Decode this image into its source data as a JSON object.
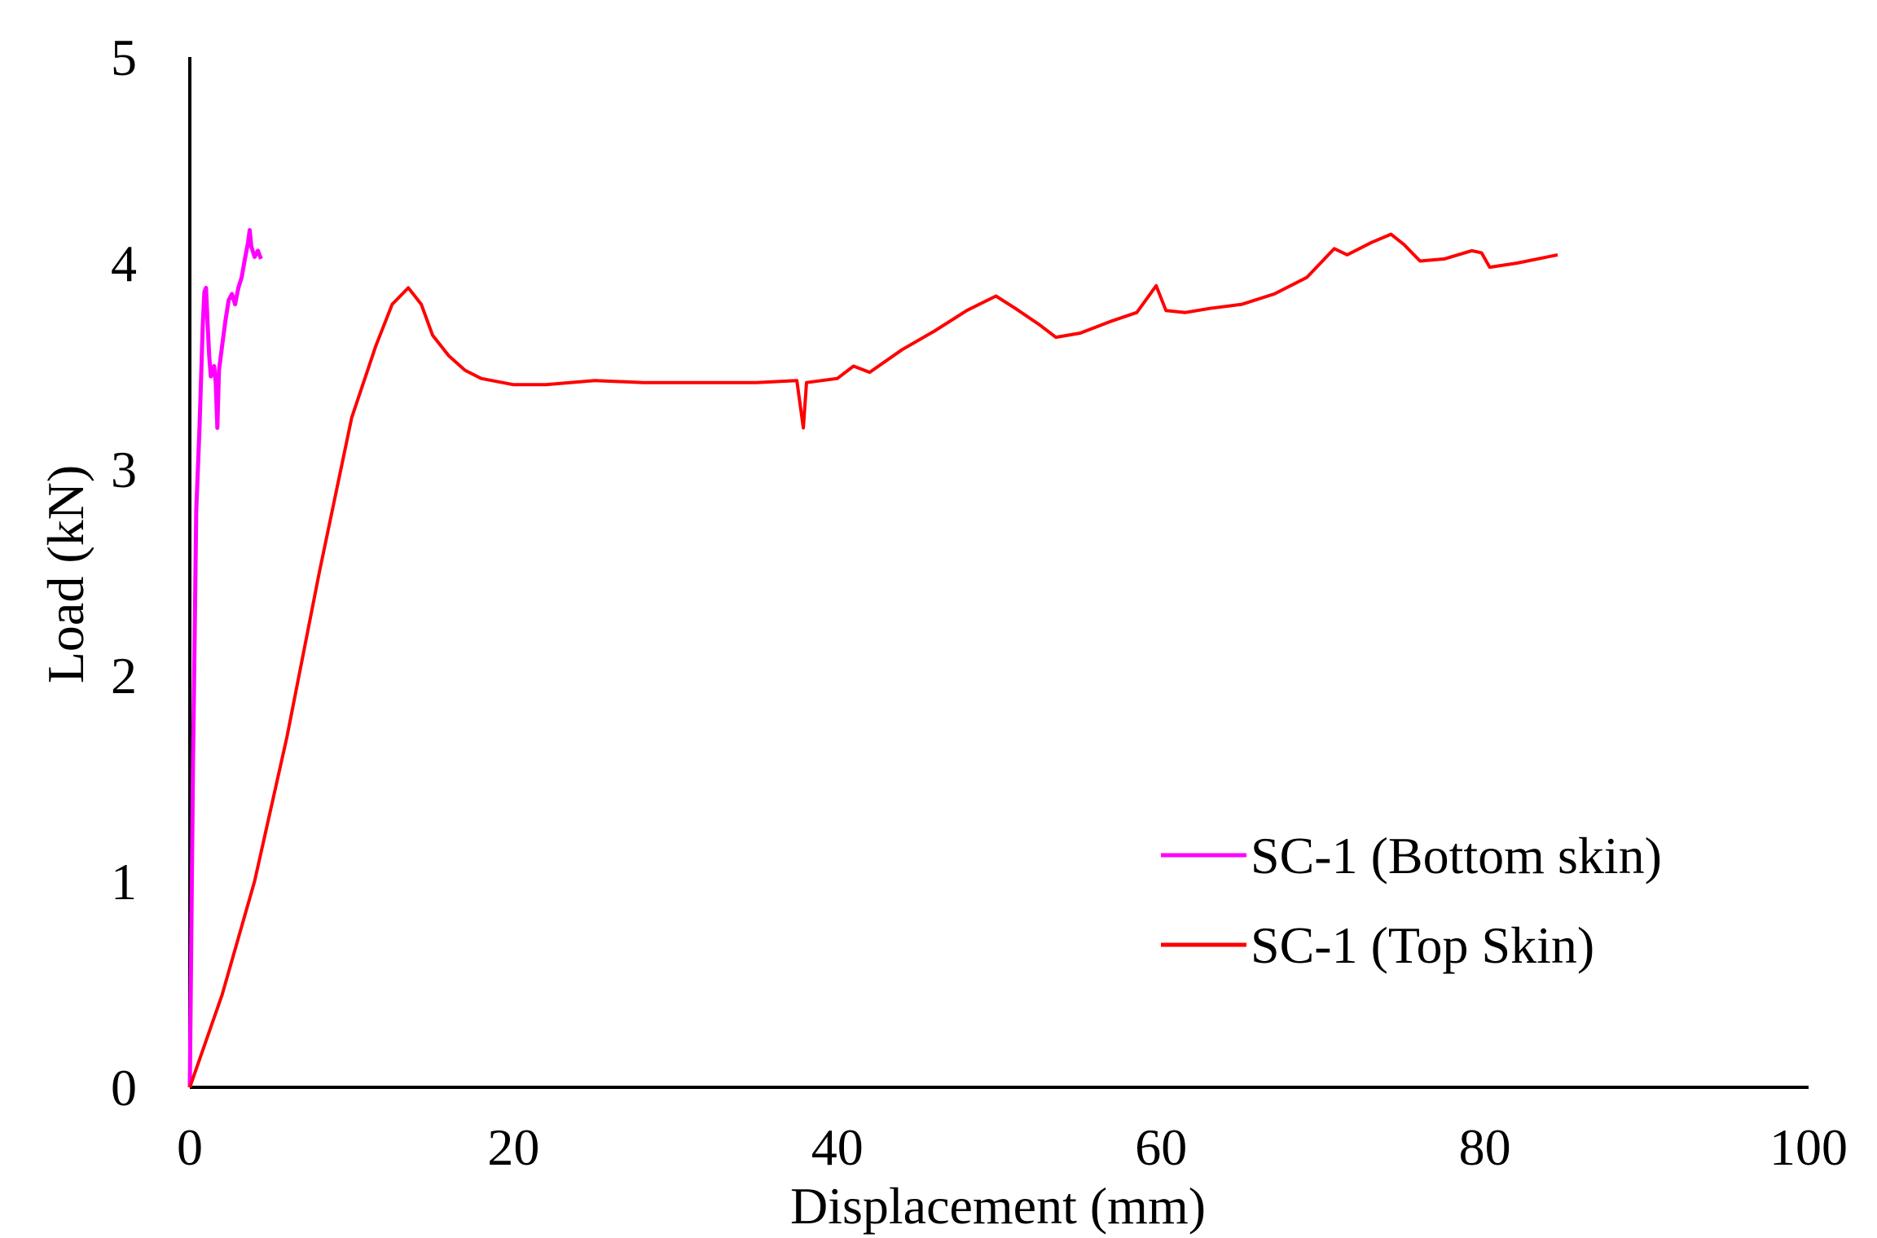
{
  "chart_data": {
    "type": "line",
    "title": "",
    "xlabel": "Displacement  (mm)",
    "ylabel": "Load (kN)",
    "xlim": [
      0,
      100
    ],
    "ylim": [
      0,
      5
    ],
    "xticks": [
      "0",
      "20",
      "40",
      "60",
      "80",
      "100"
    ],
    "yticks": [
      "0",
      "1",
      "2",
      "3",
      "4",
      "5"
    ],
    "grid": false,
    "legend_position": "bottom-right",
    "series": [
      {
        "name": "SC-1 (Bottom skin)",
        "color": "#ff00ff",
        "points": [
          [
            0,
            0
          ],
          [
            0.1,
            0.8
          ],
          [
            0.2,
            1.6
          ],
          [
            0.3,
            2.2
          ],
          [
            0.4,
            2.8
          ],
          [
            0.5,
            3.0
          ],
          [
            0.6,
            3.2
          ],
          [
            0.7,
            3.45
          ],
          [
            0.8,
            3.7
          ],
          [
            0.9,
            3.86
          ],
          [
            1.0,
            3.88
          ],
          [
            1.1,
            3.7
          ],
          [
            1.2,
            3.55
          ],
          [
            1.3,
            3.45
          ],
          [
            1.5,
            3.5
          ],
          [
            1.6,
            3.42
          ],
          [
            1.7,
            3.2
          ],
          [
            1.8,
            3.48
          ],
          [
            2.0,
            3.6
          ],
          [
            2.2,
            3.72
          ],
          [
            2.4,
            3.82
          ],
          [
            2.6,
            3.85
          ],
          [
            2.8,
            3.8
          ],
          [
            3.0,
            3.88
          ],
          [
            3.2,
            3.93
          ],
          [
            3.4,
            4.02
          ],
          [
            3.6,
            4.1
          ],
          [
            3.7,
            4.16
          ],
          [
            3.8,
            4.08
          ],
          [
            4.0,
            4.03
          ],
          [
            4.2,
            4.06
          ],
          [
            4.4,
            4.02
          ]
        ]
      },
      {
        "name": "SC-1 (Top Skin)",
        "color": "#ff0000",
        "points": [
          [
            0,
            0
          ],
          [
            2,
            0.45
          ],
          [
            4,
            1.0
          ],
          [
            6,
            1.7
          ],
          [
            8,
            2.5
          ],
          [
            10,
            3.25
          ],
          [
            11.5,
            3.6
          ],
          [
            12.5,
            3.8
          ],
          [
            13.5,
            3.88
          ],
          [
            14.3,
            3.8
          ],
          [
            15,
            3.65
          ],
          [
            16,
            3.55
          ],
          [
            17,
            3.48
          ],
          [
            18,
            3.44
          ],
          [
            20,
            3.41
          ],
          [
            22,
            3.41
          ],
          [
            25,
            3.43
          ],
          [
            28,
            3.42
          ],
          [
            31,
            3.42
          ],
          [
            35,
            3.42
          ],
          [
            37.5,
            3.43
          ],
          [
            37.9,
            3.2
          ],
          [
            38.1,
            3.42
          ],
          [
            40,
            3.44
          ],
          [
            41,
            3.5
          ],
          [
            42,
            3.47
          ],
          [
            44,
            3.58
          ],
          [
            46,
            3.67
          ],
          [
            48,
            3.77
          ],
          [
            49.8,
            3.84
          ],
          [
            51,
            3.78
          ],
          [
            52.5,
            3.7
          ],
          [
            53.5,
            3.64
          ],
          [
            55,
            3.66
          ],
          [
            57,
            3.72
          ],
          [
            58.5,
            3.76
          ],
          [
            59.7,
            3.89
          ],
          [
            60.3,
            3.77
          ],
          [
            61.5,
            3.76
          ],
          [
            63,
            3.78
          ],
          [
            65,
            3.8
          ],
          [
            67,
            3.85
          ],
          [
            69,
            3.93
          ],
          [
            70.7,
            4.07
          ],
          [
            71.5,
            4.04
          ],
          [
            73,
            4.1
          ],
          [
            74.2,
            4.14
          ],
          [
            75,
            4.09
          ],
          [
            76,
            4.01
          ],
          [
            77.5,
            4.02
          ],
          [
            79.2,
            4.06
          ],
          [
            79.8,
            4.05
          ],
          [
            80.3,
            3.98
          ],
          [
            82,
            4.0
          ],
          [
            84.5,
            4.04
          ]
        ]
      }
    ]
  }
}
